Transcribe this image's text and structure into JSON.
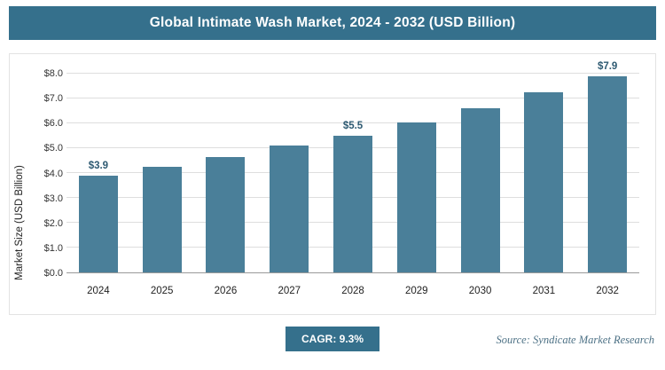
{
  "header": {
    "title": "Global Intimate Wash Market, 2024 - 2032 (USD Billion)"
  },
  "footer": {
    "cagr_label": "CAGR: 9.3%",
    "source": "Source: Syndicate Market Research"
  },
  "colors": {
    "bar": "#4a7f99",
    "header_bg": "#35708c",
    "badge_bg": "#35708c"
  },
  "chart_data": {
    "type": "bar",
    "title": "Global Intimate Wash Market, 2024 - 2032 (USD Billion)",
    "categories": [
      "2024",
      "2025",
      "2026",
      "2027",
      "2028",
      "2029",
      "2030",
      "2031",
      "2032"
    ],
    "values": [
      3.9,
      4.25,
      4.65,
      5.1,
      5.5,
      6.05,
      6.6,
      7.25,
      7.9
    ],
    "data_labels": [
      {
        "index": 0,
        "text": "$3.9"
      },
      {
        "index": 4,
        "text": "$5.5"
      },
      {
        "index": 8,
        "text": "$7.9"
      }
    ],
    "xlabel": "",
    "ylabel": "Market Size (USD Billion)",
    "ylim": [
      0,
      8
    ],
    "ytick_step": 1,
    "ytick_prefix": "$",
    "ytick_decimals": 1,
    "grid": true,
    "legend": "none"
  }
}
